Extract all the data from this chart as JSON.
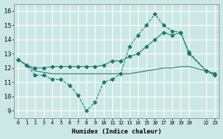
{
  "xlabel": "Humidex (Indice chaleur)",
  "bg_color": "#cce8e4",
  "grid_color": "#ffffff",
  "line_color": "#1a7a6e",
  "xlim": [
    -0.5,
    23.5
  ],
  "ylim": [
    8.5,
    16.5
  ],
  "yticks": [
    9,
    10,
    11,
    12,
    13,
    14,
    15,
    16
  ],
  "xtick_positions": [
    0,
    1,
    2,
    3,
    4,
    5,
    6,
    7,
    8,
    9,
    10,
    11,
    12,
    13,
    14,
    15,
    16,
    17,
    18,
    19,
    20,
    22,
    23
  ],
  "xtick_labels": [
    "0",
    "1",
    "2",
    "3",
    "4",
    "5",
    "6",
    "7",
    "8",
    "9",
    "10",
    "11",
    "12",
    "13",
    "14",
    "15",
    "16",
    "17",
    "18",
    "19",
    "20",
    "22",
    "23"
  ],
  "series1_x": [
    0,
    1,
    2,
    3,
    4,
    5,
    6,
    7,
    8,
    9,
    10,
    11,
    12,
    13,
    14,
    15,
    16,
    17,
    18,
    19,
    20,
    22,
    23
  ],
  "series1_y": [
    12.6,
    12.2,
    11.5,
    11.5,
    11.2,
    11.2,
    10.8,
    10.1,
    9.0,
    9.6,
    11.0,
    11.2,
    11.6,
    13.5,
    14.3,
    15.0,
    15.8,
    15.0,
    14.6,
    14.5,
    13.1,
    11.8,
    11.6
  ],
  "series2_x": [
    0,
    1,
    2,
    3,
    4,
    5,
    6,
    7,
    8,
    9,
    10,
    11,
    12,
    13,
    14,
    15,
    16,
    17,
    18,
    19,
    20,
    22,
    23
  ],
  "series2_y": [
    12.6,
    12.2,
    11.8,
    11.7,
    11.6,
    11.6,
    11.6,
    11.6,
    11.6,
    11.6,
    11.6,
    11.6,
    11.6,
    11.6,
    11.7,
    11.8,
    11.9,
    12.0,
    12.0,
    12.1,
    12.1,
    11.8,
    11.6
  ],
  "series3_x": [
    0,
    1,
    2,
    3,
    4,
    5,
    6,
    7,
    8,
    9,
    10,
    11,
    12,
    13,
    14,
    15,
    16,
    17,
    18,
    19,
    20,
    22,
    23
  ],
  "series3_y": [
    12.6,
    12.2,
    12.0,
    12.0,
    12.1,
    12.1,
    12.1,
    12.1,
    12.1,
    12.1,
    12.2,
    12.5,
    12.5,
    12.8,
    13.0,
    13.5,
    14.0,
    14.5,
    14.3,
    14.5,
    13.0,
    11.8,
    11.5
  ]
}
